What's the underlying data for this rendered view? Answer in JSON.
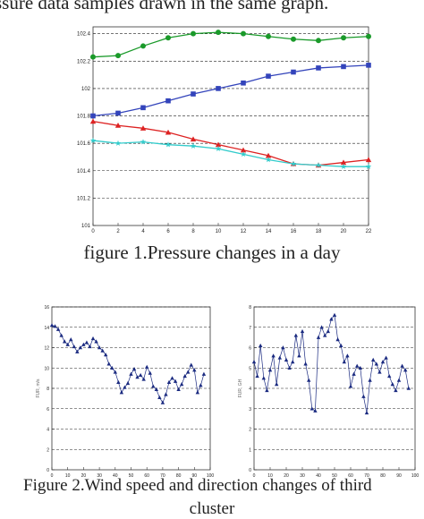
{
  "captions": {
    "top_fragment": "ssure data samples drawn in the same graph.",
    "figure1": "figure 1.Pressure changes in a day",
    "figure2_line1": "Figure 2.Wind speed and direction changes of third",
    "figure2_line2": "cluster"
  },
  "chart_data": [
    {
      "type": "line",
      "title": "",
      "xlabel": "",
      "ylabel": "",
      "x": [
        0,
        2,
        4,
        6,
        8,
        10,
        12,
        14,
        16,
        18,
        20,
        22
      ],
      "xticks": [
        "0",
        "2",
        "4",
        "6",
        "8",
        "10",
        "12",
        "14",
        "16",
        "18",
        "20",
        "22"
      ],
      "yticks": [
        "101",
        "101.2",
        "101.4",
        "101.6",
        "101.8",
        "102",
        "102.2",
        "102.4"
      ],
      "xlim": [
        0,
        22
      ],
      "ylim": [
        101,
        102.45
      ],
      "grid": "horizontal",
      "series": [
        {
          "color": "#1a9a2a",
          "marker": "circle",
          "values": [
            102.23,
            102.24,
            102.31,
            102.37,
            102.4,
            102.41,
            102.4,
            102.38,
            102.36,
            102.35,
            102.37,
            102.38
          ]
        },
        {
          "color": "#3344bb",
          "marker": "square",
          "values": [
            101.8,
            101.82,
            101.86,
            101.91,
            101.96,
            102.0,
            102.04,
            102.09,
            102.12,
            102.15,
            102.16,
            102.17
          ]
        },
        {
          "color": "#dd2222",
          "marker": "triangle",
          "values": [
            101.76,
            101.73,
            101.71,
            101.68,
            101.63,
            101.59,
            101.55,
            101.51,
            101.45,
            101.44,
            101.46,
            101.48
          ]
        },
        {
          "color": "#33cccc",
          "marker": "star",
          "values": [
            101.62,
            101.6,
            101.61,
            101.59,
            101.58,
            101.56,
            101.52,
            101.48,
            101.45,
            101.44,
            101.43,
            101.43
          ]
        }
      ]
    },
    {
      "type": "line",
      "title": "",
      "xlabel": "",
      "ylabel": "FUR, m/s",
      "xlim": [
        0,
        100
      ],
      "ylim": [
        0,
        16
      ],
      "xticks": [
        "0",
        "10",
        "20",
        "30",
        "40",
        "50",
        "60",
        "70",
        "80",
        "90",
        "100"
      ],
      "yticks": [
        "0",
        "2",
        "4",
        "6",
        "8",
        "10",
        "12",
        "14",
        "16"
      ],
      "grid": "horizontal",
      "series": [
        {
          "color": "#1a2a80",
          "marker": "triangle",
          "x": [
            0,
            2,
            4,
            6,
            8,
            10,
            12,
            14,
            16,
            18,
            20,
            22,
            24,
            26,
            28,
            30,
            32,
            34,
            36,
            38,
            40,
            42,
            44,
            46,
            48,
            50,
            52,
            54,
            56,
            58,
            60,
            62,
            64,
            66,
            68,
            70,
            72,
            74,
            76,
            78,
            80,
            82,
            84,
            86,
            88,
            90,
            92,
            94,
            96
          ],
          "values": [
            14.2,
            14.1,
            13.8,
            13.2,
            12.6,
            12.3,
            12.8,
            12.1,
            11.6,
            12.0,
            12.3,
            12.5,
            12.1,
            12.9,
            12.6,
            12.0,
            11.7,
            11.3,
            10.4,
            10.0,
            9.6,
            8.6,
            7.6,
            8.1,
            8.5,
            9.4,
            9.9,
            9.1,
            9.3,
            8.9,
            10.1,
            9.5,
            8.2,
            7.9,
            7.1,
            6.6,
            7.4,
            8.6,
            9.0,
            8.7,
            7.9,
            8.4,
            9.2,
            9.6,
            10.3,
            9.8,
            7.6,
            8.3,
            9.4
          ]
        }
      ]
    },
    {
      "type": "line",
      "title": "",
      "xlabel": "",
      "ylabel": "FUR, GH",
      "xlim": [
        0,
        100
      ],
      "ylim": [
        0,
        8
      ],
      "xticks": [
        "0",
        "10",
        "20",
        "30",
        "40",
        "50",
        "60",
        "70",
        "80",
        "90",
        "100"
      ],
      "yticks": [
        "0",
        "1",
        "2",
        "3",
        "4",
        "5",
        "6",
        "7",
        "8"
      ],
      "grid": "horizontal",
      "series": [
        {
          "color": "#1a2a80",
          "marker": "triangle",
          "x": [
            0,
            2,
            4,
            6,
            8,
            10,
            12,
            14,
            16,
            18,
            20,
            22,
            24,
            26,
            28,
            30,
            32,
            34,
            36,
            38,
            40,
            42,
            44,
            46,
            48,
            50,
            52,
            54,
            56,
            58,
            60,
            62,
            64,
            66,
            68,
            70,
            72,
            74,
            76,
            78,
            80,
            82,
            84,
            86,
            88,
            90,
            92,
            94,
            96
          ],
          "values": [
            5.3,
            4.6,
            6.1,
            4.5,
            3.9,
            4.9,
            5.6,
            4.2,
            5.5,
            6.0,
            5.4,
            5.0,
            5.3,
            6.6,
            5.6,
            6.8,
            5.2,
            4.4,
            3.0,
            2.9,
            6.5,
            7.0,
            6.6,
            6.8,
            7.4,
            7.6,
            6.4,
            6.1,
            5.3,
            5.6,
            4.1,
            4.7,
            5.1,
            5.0,
            3.6,
            2.8,
            4.4,
            5.4,
            5.2,
            4.8,
            5.3,
            5.5,
            4.6,
            4.2,
            3.9,
            4.4,
            5.1,
            4.9,
            4.0
          ]
        }
      ]
    }
  ]
}
